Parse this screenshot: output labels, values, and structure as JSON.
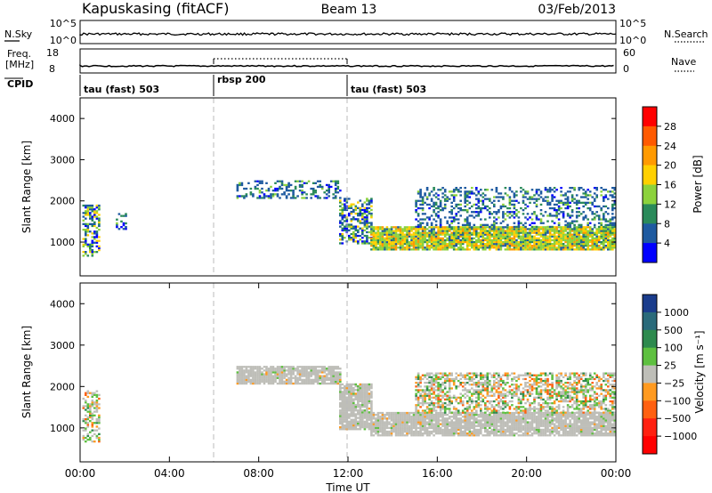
{
  "header": {
    "station": "Kapuskasing (fitACF)",
    "beam": "Beam 13",
    "date": "03/Feb/2013"
  },
  "strip_nsky": {
    "label": "N.Sky",
    "ticks_left": [
      "10^5",
      "10^0"
    ],
    "ticks_right": [
      "10^5",
      "10^0"
    ],
    "legend": "N.Search"
  },
  "strip_freq": {
    "label_line1": "Freq.",
    "label_line2": "[MHz]",
    "ticks_left": [
      "18",
      "8"
    ],
    "ticks_right": [
      "60",
      "0"
    ],
    "legend": "Nave"
  },
  "cpid": {
    "label": "CPID",
    "segments": [
      {
        "label": "tau (fast) 503",
        "start": 0,
        "end": 6
      },
      {
        "label": "rbsp 200",
        "start": 6,
        "end": 12
      },
      {
        "label": "tau (fast) 503",
        "start": 12,
        "end": 24
      }
    ]
  },
  "chart_data": [
    {
      "type": "heatmap",
      "name": "power",
      "xlabel": "",
      "ylabel": "Slant Range [km]",
      "xlim": [
        0,
        24
      ],
      "ylim": [
        180,
        4500
      ],
      "yticks": [
        "1000",
        "2000",
        "3000",
        "4000"
      ],
      "colorbar": {
        "label": "Power [dB]",
        "ticks": [
          "28",
          "24",
          "20",
          "16",
          "12",
          "8",
          "4"
        ],
        "colors": [
          "#ff0000",
          "#ff5a00",
          "#ff9a00",
          "#ffd000",
          "#8cd23c",
          "#2a8a5a",
          "#1e5aa0",
          "#0000ff"
        ]
      },
      "regions": [
        {
          "t": [
            0.1,
            0.8
          ],
          "r": [
            650,
            1900
          ],
          "level": "mixed"
        },
        {
          "t": [
            1.6,
            2.1
          ],
          "r": [
            1300,
            1700
          ],
          "level": "weak"
        },
        {
          "t": [
            7.0,
            11.6
          ],
          "r": [
            2050,
            2500
          ],
          "level": "weak"
        },
        {
          "t": [
            11.6,
            13.0
          ],
          "r": [
            950,
            2050
          ],
          "level": "mixed"
        },
        {
          "t": [
            13.0,
            24.0
          ],
          "r": [
            800,
            1350
          ],
          "level": "strong"
        },
        {
          "t": [
            15.0,
            24.0
          ],
          "r": [
            1350,
            2300
          ],
          "level": "weak"
        }
      ]
    },
    {
      "type": "heatmap",
      "name": "velocity",
      "xlabel": "Time UT",
      "ylabel": "Slant Range [km]",
      "xlim": [
        0,
        24
      ],
      "ylim": [
        180,
        4500
      ],
      "xticks": [
        "00:00",
        "04:00",
        "08:00",
        "12:00",
        "16:00",
        "20:00",
        "00:00"
      ],
      "yticks": [
        "1000",
        "2000",
        "3000",
        "4000"
      ],
      "colorbar": {
        "label": "Velocity [m s⁻¹]",
        "ticks": [
          "1000",
          "500",
          "100",
          "25",
          "−25",
          "−100",
          "−500",
          "−1000"
        ],
        "colors": [
          "#1a3c8c",
          "#2a6a7a",
          "#2e8a4e",
          "#5ec040",
          "#bebeb8",
          "#ff9a20",
          "#ff6010",
          "#ff2010",
          "#ff0000"
        ]
      },
      "regions": [
        {
          "t": [
            0.1,
            0.8
          ],
          "r": [
            650,
            1900
          ],
          "level": "mixed"
        },
        {
          "t": [
            7.0,
            11.6
          ],
          "r": [
            2050,
            2500
          ],
          "level": "ground"
        },
        {
          "t": [
            11.6,
            13.0
          ],
          "r": [
            950,
            2050
          ],
          "level": "ground"
        },
        {
          "t": [
            13.0,
            24.0
          ],
          "r": [
            800,
            1350
          ],
          "level": "ground"
        },
        {
          "t": [
            15.0,
            24.0
          ],
          "r": [
            1350,
            2300
          ],
          "level": "mixed"
        }
      ]
    }
  ]
}
